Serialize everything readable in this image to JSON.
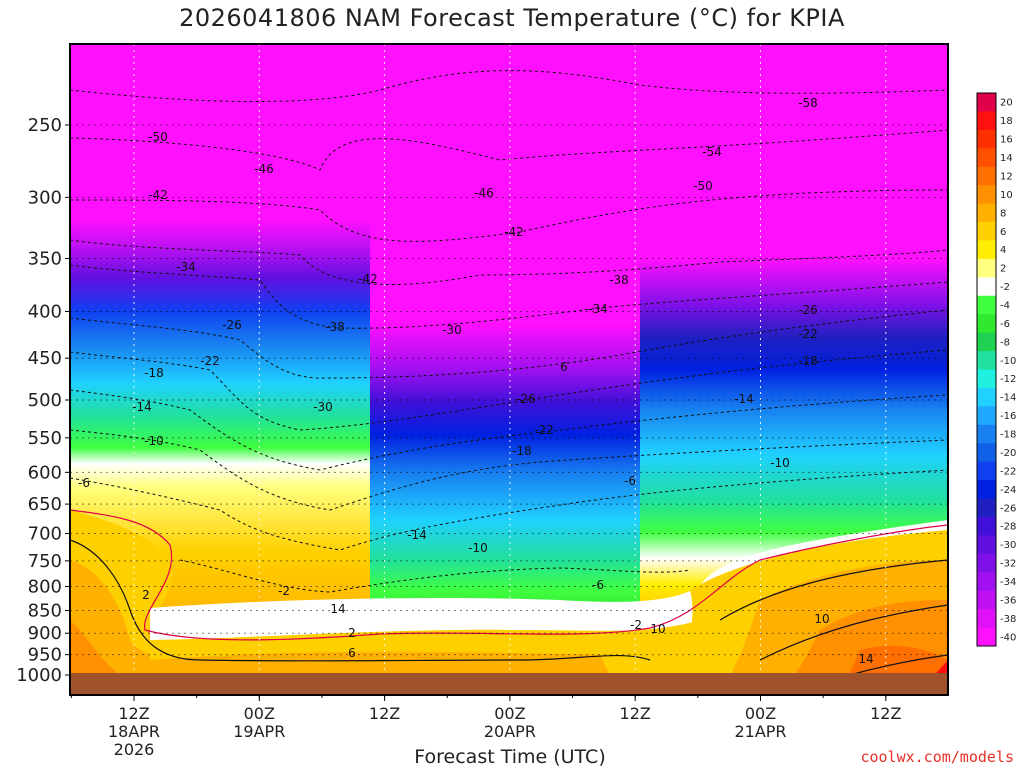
{
  "chart_data": {
    "type": "heatmap",
    "title": "2026041806 NAM Forecast Temperature (°C) for KPIA",
    "xlabel": "Forecast Time (UTC)",
    "ylabel": "",
    "y_ticks": [
      "250",
      "300",
      "350",
      "400",
      "450",
      "500",
      "550",
      "600",
      "650",
      "700",
      "750",
      "800",
      "850",
      "900",
      "950",
      "1000"
    ],
    "x_ticks": [
      {
        "label": "12Z",
        "sub1": "18APR",
        "sub2": "2026"
      },
      {
        "label": "00Z",
        "sub1": "19APR",
        "sub2": ""
      },
      {
        "label": "12Z",
        "sub1": "",
        "sub2": ""
      },
      {
        "label": "00Z",
        "sub1": "20APR",
        "sub2": ""
      },
      {
        "label": "12Z",
        "sub1": "",
        "sub2": ""
      },
      {
        "label": "00Z",
        "sub1": "21APR",
        "sub2": ""
      },
      {
        "label": "12Z",
        "sub1": "",
        "sub2": ""
      }
    ],
    "y_range": [
      1000,
      200
    ],
    "colorbar": {
      "levels": [
        "20",
        "18",
        "16",
        "14",
        "12",
        "10",
        "8",
        "6",
        "4",
        "2",
        "-2",
        "-4",
        "-6",
        "-8",
        "-10",
        "-12",
        "-14",
        "-16",
        "-18",
        "-20",
        "-22",
        "-24",
        "-26",
        "-28",
        "-30",
        "-32",
        "-34",
        "-36",
        "-38",
        "-40"
      ],
      "colors": [
        "#e0004a",
        "#ff1010",
        "#ff3000",
        "#ff5000",
        "#ff7000",
        "#ff9000",
        "#ffb000",
        "#ffd000",
        "#ffee00",
        "#ffff80",
        "#ffffff",
        "#40ff40",
        "#30e830",
        "#20d050",
        "#20e0a0",
        "#20f0e0",
        "#20d0ff",
        "#20a8ff",
        "#1880f0",
        "#1060e8",
        "#1040f0",
        "#0020e0",
        "#2020c0",
        "#4010d8",
        "#6010e0",
        "#8010e8",
        "#a010f0",
        "#c010f4",
        "#e010f8",
        "#ff10ff"
      ]
    },
    "contour_labels": [
      "-50",
      "-46",
      "-42",
      "-34",
      "-26",
      "-22",
      "-18",
      "-14",
      "-10",
      "-6",
      "-58",
      "-54",
      "-50",
      "-46",
      "-42",
      "-38",
      "-34",
      "-30",
      "-26",
      "-22",
      "-18",
      "-14",
      "-10",
      "-6",
      "-2",
      "2",
      "6",
      "10",
      "14",
      "-42",
      "-38",
      "-30",
      "-26",
      "-22",
      "-18",
      "-14",
      "-10",
      "-6",
      "-2",
      "2",
      "6",
      "10",
      "14"
    ],
    "grid": true,
    "legend": "right"
  },
  "watermark": "coolwx.com/models"
}
